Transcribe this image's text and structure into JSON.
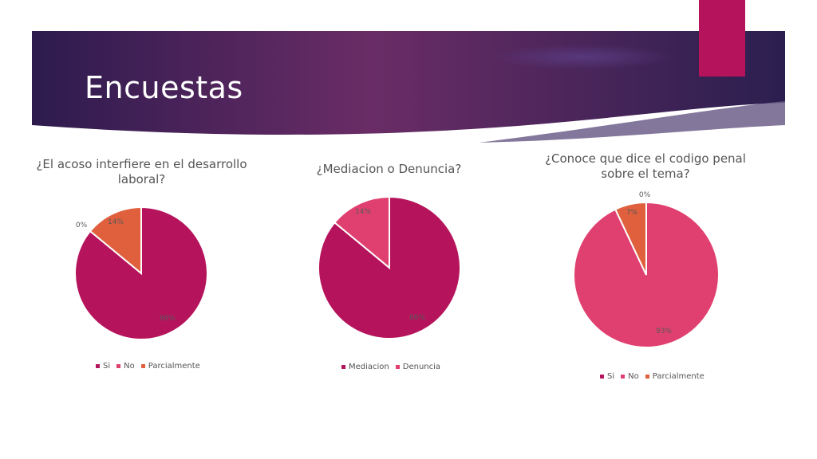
{
  "slide": {
    "title": "Encuestas"
  },
  "colors": {
    "si": "#b5145c",
    "mediacion": "#b5145c",
    "no": "#e04070",
    "parcialmente": "#e0603e",
    "banner_dark": "#2d1b4e",
    "banner_mid": "#6a2c66"
  },
  "chart_data": [
    {
      "type": "pie",
      "title": "¿El acoso interfiere en el desarrollo laboral?",
      "categories": [
        "Si",
        "No",
        "Parcialmente"
      ],
      "values": [
        86,
        0,
        14
      ],
      "labels": [
        "86%",
        "0%",
        "14%"
      ],
      "colors": [
        "#b5145c",
        "#e04070",
        "#e0603e"
      ],
      "legend": "bottom"
    },
    {
      "type": "pie",
      "title": "¿Mediacion o Denuncia?",
      "categories": [
        "Mediacion",
        "Denuncia"
      ],
      "values": [
        86,
        14
      ],
      "labels": [
        "86%",
        "14%"
      ],
      "colors": [
        "#b5145c",
        "#e04070"
      ],
      "legend": "bottom"
    },
    {
      "type": "pie",
      "title": "¿Conoce que dice el codigo penal sobre el tema?",
      "categories": [
        "Si",
        "No",
        "Parcialmente"
      ],
      "values": [
        0,
        93,
        7
      ],
      "labels": [
        "0%",
        "93%",
        "7%"
      ],
      "colors": [
        "#b5145c",
        "#e04070",
        "#e0603e"
      ],
      "legend": "bottom"
    }
  ]
}
